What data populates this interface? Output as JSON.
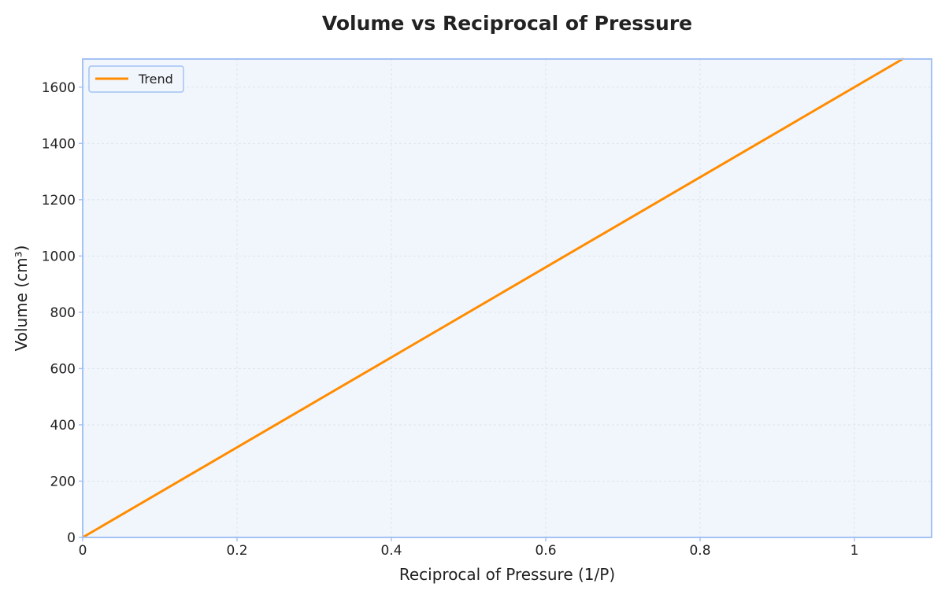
{
  "chart_data": {
    "type": "line",
    "title": "Volume vs Reciprocal of Pressure",
    "xlabel": "Reciprocal of Pressure (1/P)",
    "ylabel": "Volume (cm³)",
    "xlim": [
      0,
      1.1
    ],
    "ylim": [
      0,
      1700
    ],
    "x_ticks": [
      0,
      0.2,
      0.4,
      0.6,
      0.8,
      1
    ],
    "x_tick_labels": [
      "0",
      "0.2",
      "0.4",
      "0.6",
      "0.8",
      "1"
    ],
    "y_ticks": [
      0,
      200,
      400,
      600,
      800,
      1000,
      1200,
      1400,
      1600
    ],
    "y_tick_labels": [
      "0",
      "200",
      "400",
      "600",
      "800",
      "1000",
      "1200",
      "1400",
      "1600"
    ],
    "grid": true,
    "legend_position": "top-left",
    "series": [
      {
        "name": "Trend",
        "color": "#ff8c00",
        "x": [
          0,
          1.0625
        ],
        "y": [
          0,
          1700
        ]
      }
    ],
    "plot_background": "#f1f6fc",
    "frame_color": "#a4c2f4",
    "grid_color": "#dde4ee"
  }
}
